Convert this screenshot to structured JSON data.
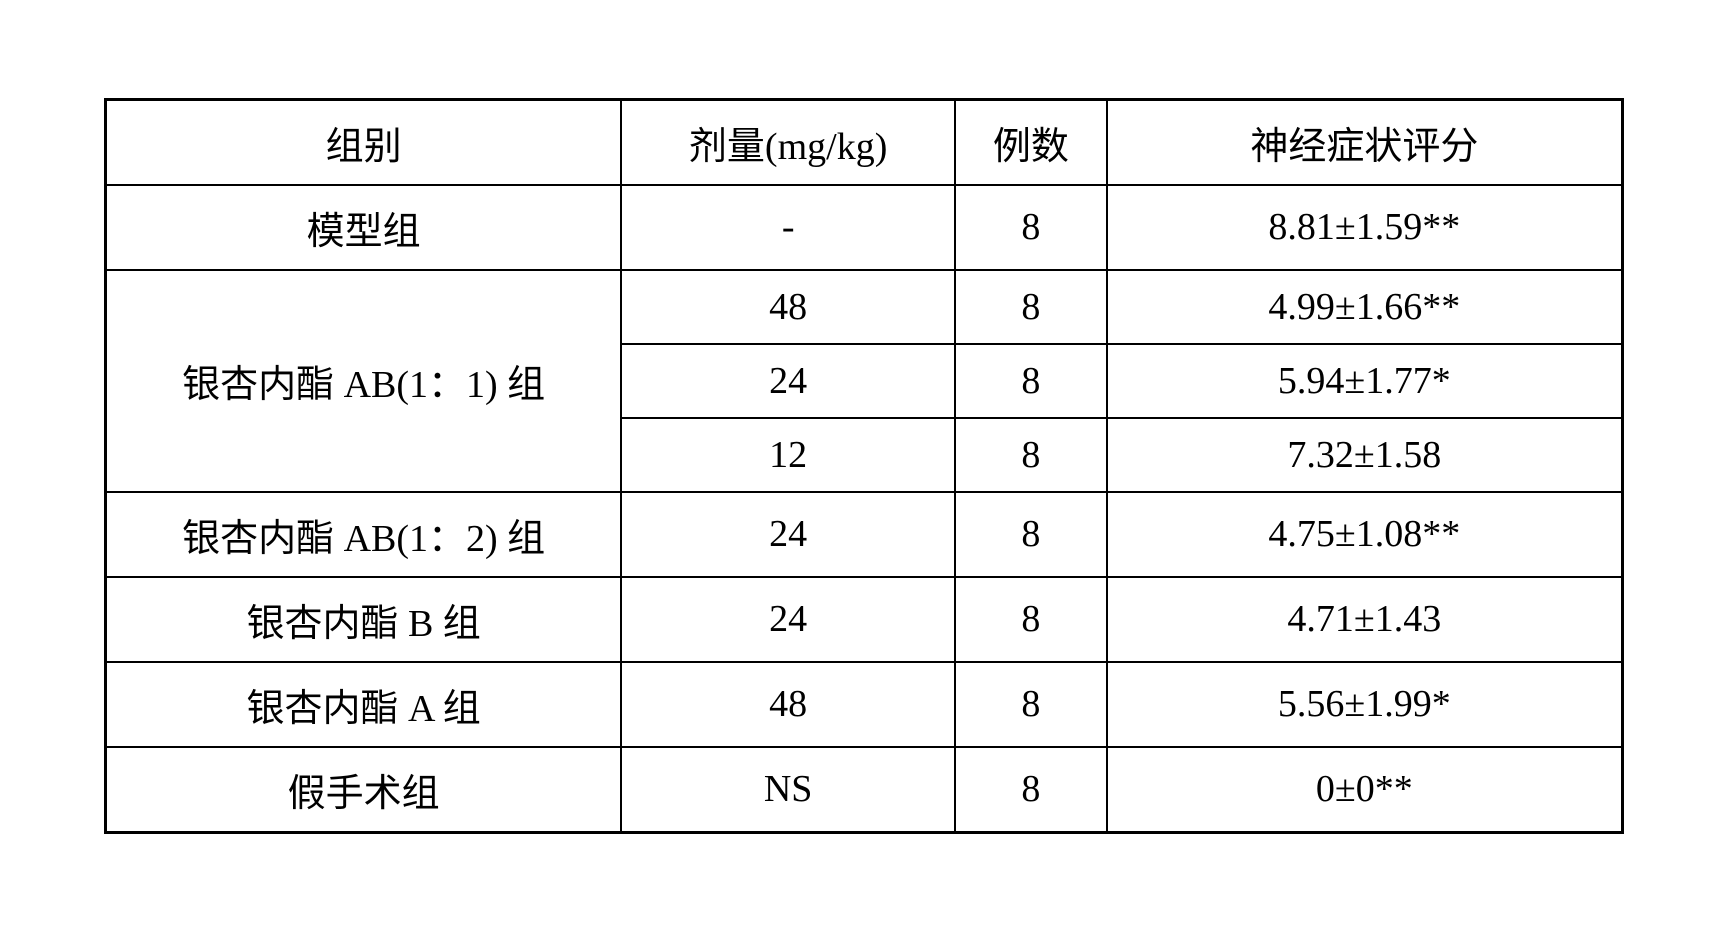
{
  "table": {
    "columns": [
      "组别",
      "剂量(mg/kg)",
      "例数",
      "神经症状评分"
    ],
    "rows": [
      {
        "group": "模型组",
        "dose": "-",
        "count": "8",
        "score": "8.81±1.59**"
      },
      {
        "group": "银杏内酯 AB(1：1) 组",
        "dose": "48",
        "count": "8",
        "score": "4.99±1.66**"
      },
      {
        "group": null,
        "dose": "24",
        "count": "8",
        "score": "5.94±1.77*"
      },
      {
        "group": null,
        "dose": "12",
        "count": "8",
        "score": "7.32±1.58"
      },
      {
        "group": "银杏内酯 AB(1：2) 组",
        "dose": "24",
        "count": "8",
        "score": "4.75±1.08**"
      },
      {
        "group": "银杏内酯 B 组",
        "dose": "24",
        "count": "8",
        "score": "4.71±1.43"
      },
      {
        "group": "银杏内酯 A 组",
        "dose": "48",
        "count": "8",
        "score": "5.56±1.99*"
      },
      {
        "group": "假手术组",
        "dose": "NS",
        "count": "8",
        "score": "0±0**"
      }
    ],
    "border_color": "#000000",
    "background_color": "#ffffff",
    "text_color": "#000000",
    "fontsize": 38,
    "col_widths_pct": [
      34,
      22,
      10,
      34
    ]
  }
}
